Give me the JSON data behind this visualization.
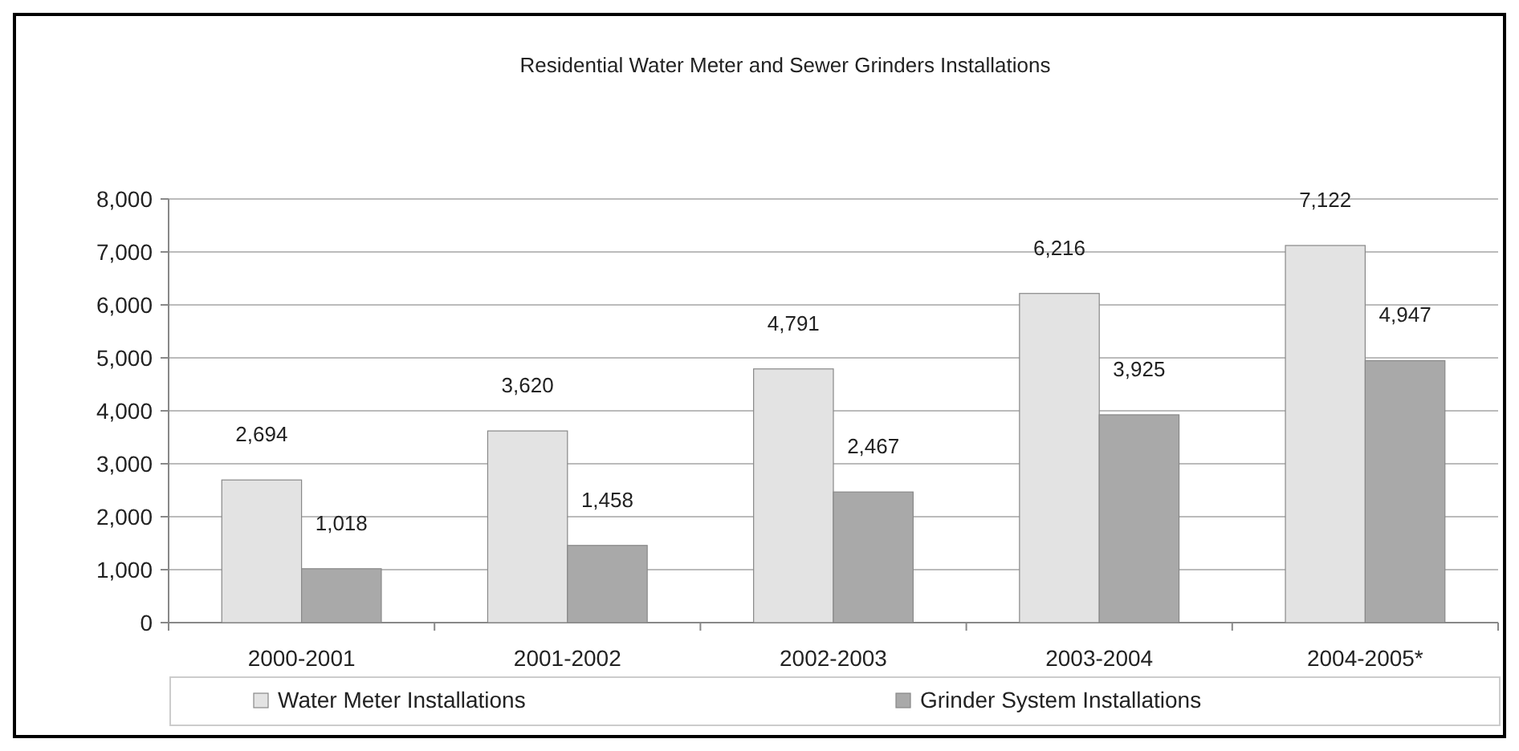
{
  "chart_data": {
    "type": "bar",
    "title": "Residential Water Meter and Sewer Grinders Installations",
    "categories": [
      "2000-2001",
      "2001-2002",
      "2002-2003",
      "2003-2004",
      "2004-2005*"
    ],
    "series": [
      {
        "name": "Water Meter Installations",
        "color": "#e3e3e3",
        "values": [
          2694,
          3620,
          4791,
          6216,
          7122
        ],
        "value_labels": [
          "2,694",
          "3,620",
          "4,791",
          "6,216",
          "7,122"
        ]
      },
      {
        "name": "Grinder System Installations",
        "color": "#a9a9a9",
        "values": [
          1018,
          1458,
          2467,
          3925,
          4947
        ],
        "value_labels": [
          "1,018",
          "1,458",
          "2,467",
          "3,925",
          "4,947"
        ]
      }
    ],
    "ylim": [
      0,
      8000
    ],
    "yticks": [
      {
        "value": 0,
        "label": "0"
      },
      {
        "value": 1000,
        "label": "1,000"
      },
      {
        "value": 2000,
        "label": "2,000"
      },
      {
        "value": 3000,
        "label": "3,000"
      },
      {
        "value": 4000,
        "label": "4,000"
      },
      {
        "value": 5000,
        "label": "5,000"
      },
      {
        "value": 6000,
        "label": "6,000"
      },
      {
        "value": 7000,
        "label": "7,000"
      },
      {
        "value": 8000,
        "label": "8,000"
      }
    ],
    "grid": "y",
    "legend": "bottom"
  }
}
